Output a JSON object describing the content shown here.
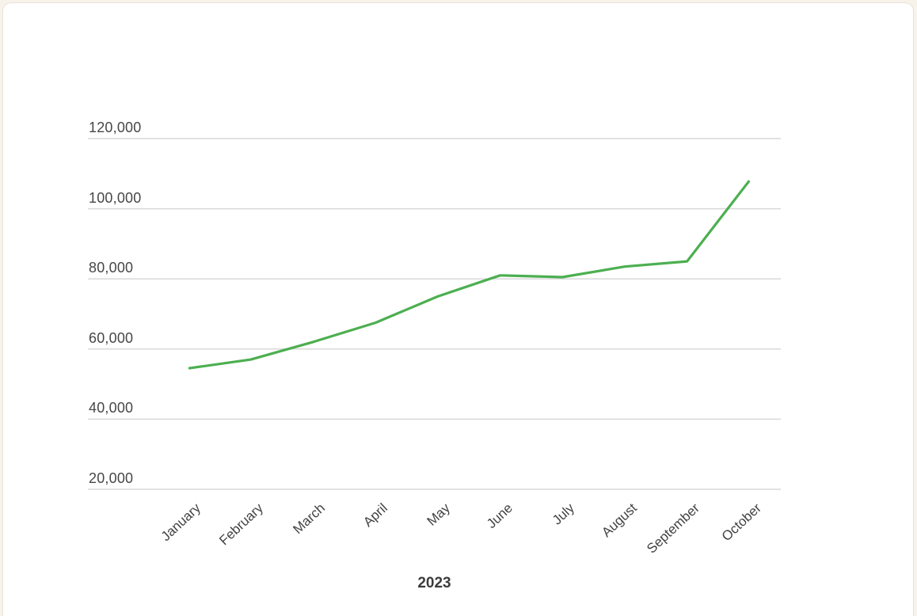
{
  "chart_data": {
    "type": "line",
    "title": "",
    "xlabel": "2023",
    "ylabel": "",
    "categories": [
      "January",
      "February",
      "March",
      "April",
      "May",
      "June",
      "July",
      "August",
      "September",
      "October"
    ],
    "series": [
      {
        "name": "2023",
        "values": [
          54500,
          57000,
          62000,
          67500,
          75000,
          81000,
          80500,
          83500,
          85000,
          108000
        ],
        "color": "#4caf50"
      }
    ],
    "y_ticks": [
      120000,
      100000,
      80000,
      60000,
      40000,
      20000
    ],
    "y_tick_labels": [
      "120,000",
      "100,000",
      "80,000",
      "60,000",
      "40,000",
      "20,000"
    ],
    "ylim": [
      20000,
      120000
    ],
    "grid": "horizontal",
    "legend_position": "none",
    "colors": {
      "line": "#4caf50",
      "gridline": "#d9d9d9",
      "tick_text": "#474747",
      "month_text": "#424242",
      "axis_title_text": "#3c3c3c",
      "card_background": "#ffffff",
      "page_background": "#f7f3ea"
    }
  }
}
